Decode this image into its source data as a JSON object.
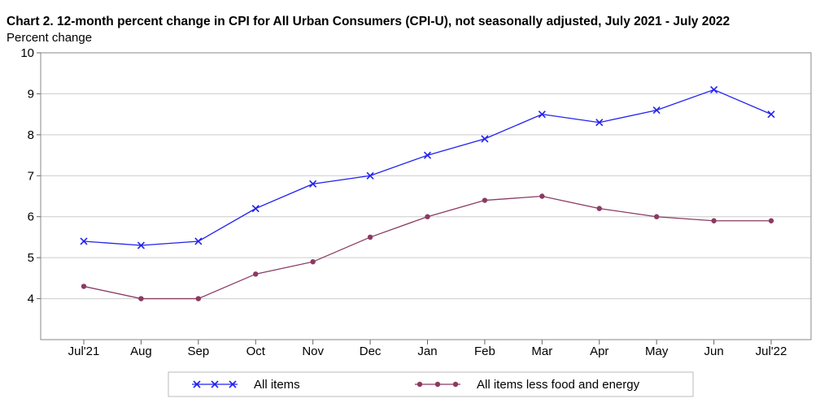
{
  "chart_data": {
    "type": "line",
    "title": "Chart 2. 12-month percent change in CPI for All Urban Consumers (CPI-U), not seasonally adjusted, July 2021 - July 2022",
    "ylabel": "Percent change",
    "xlabel": "",
    "categories": [
      "Jul'21",
      "Aug",
      "Sep",
      "Oct",
      "Nov",
      "Dec",
      "Jan",
      "Feb",
      "Mar",
      "Apr",
      "May",
      "Jun",
      "Jul'22"
    ],
    "ylim": [
      3,
      10
    ],
    "yticks": [
      4,
      5,
      6,
      7,
      8,
      9,
      10
    ],
    "grid": true,
    "legend_position": "bottom",
    "series": [
      {
        "name": "All items",
        "color": "#2222ee",
        "marker": "x",
        "values": [
          5.4,
          5.3,
          5.4,
          6.2,
          6.8,
          7.0,
          7.5,
          7.9,
          8.5,
          8.3,
          8.6,
          9.1,
          8.5
        ]
      },
      {
        "name": "All items less food and energy",
        "color": "#8b3a62",
        "marker": "dot",
        "values": [
          4.3,
          4.0,
          4.0,
          4.6,
          4.9,
          5.5,
          6.0,
          6.4,
          6.5,
          6.2,
          6.0,
          5.9,
          5.9
        ]
      }
    ]
  }
}
